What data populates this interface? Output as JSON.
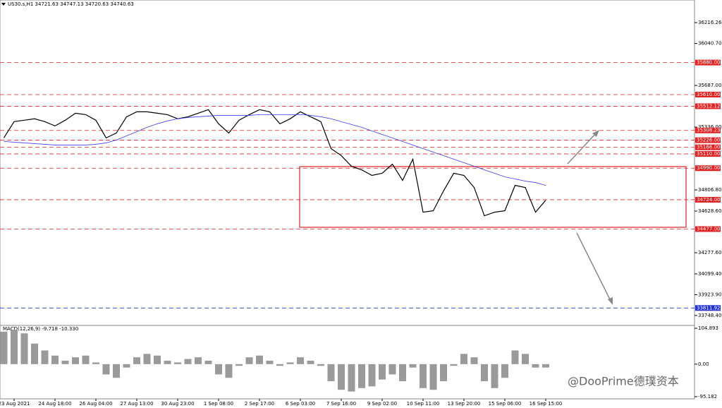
{
  "chart_data": [
    {
      "type": "line",
      "title": "US30.s,H1  34721.63 34747.13 34720.63 34740.63",
      "categories": [
        null,
        "23 Aug 2021",
        null,
        null,
        null,
        "24 Aug 18:00",
        null,
        null,
        null,
        "26 Aug 04:00",
        null,
        null,
        null,
        "27 Aug 13:00",
        null,
        null,
        null,
        "30 Aug 23:00",
        null,
        null,
        null,
        "1 Sep 08:00",
        null,
        null,
        null,
        "2 Sep 17:00",
        null,
        null,
        null,
        "6 Sep 03:00",
        null,
        null,
        null,
        "7 Sep 16:00",
        null,
        null,
        null,
        "9 Sep 02:00",
        null,
        null,
        null,
        "10 Sep 11:00",
        null,
        null,
        null,
        "13 Sep 20:00",
        null,
        null,
        null,
        "15 Sep 06:00",
        null,
        null,
        null,
        "16 Sep 15:00"
      ],
      "series": [
        {
          "color": "#000000",
          "values": [
            35245,
            35382,
            35394,
            35406,
            35382,
            35346,
            35394,
            35453,
            35441,
            35394,
            35245,
            35286,
            35423,
            35465,
            35465,
            35453,
            35441,
            35406,
            35423,
            35453,
            35483,
            35364,
            35286,
            35394,
            35441,
            35483,
            35465,
            35364,
            35406,
            35465,
            35423,
            35382,
            35155,
            35096,
            35006,
            34976,
            34929,
            34947,
            35024,
            34887,
            35066,
            34619,
            34631,
            34798,
            34947,
            34929,
            34827,
            34589,
            34619,
            34631,
            34845,
            34827,
            34619,
            34720
          ]
        },
        {
          "color": "#3b3bff",
          "values": [
            35215,
            35209,
            35203,
            35197,
            35191,
            35185,
            35185,
            35185,
            35185,
            35191,
            35203,
            35227,
            35262,
            35298,
            35334,
            35364,
            35388,
            35406,
            35417,
            35423,
            35429,
            35435,
            35435,
            35435,
            35435,
            35441,
            35441,
            35441,
            35441,
            35441,
            35435,
            35423,
            35406,
            35382,
            35358,
            35334,
            35304,
            35274,
            35245,
            35215,
            35185,
            35155,
            35125,
            35096,
            35066,
            35036,
            35006,
            34976,
            34947,
            34917,
            34899,
            34881,
            34869,
            34845
          ]
        }
      ],
      "ylim": [
        33665,
        36407
      ],
      "yticks": [
        {
          "value": 36216.26,
          "label": "36216.26"
        },
        {
          "value": 36040.7,
          "label": "36040.70"
        },
        {
          "value": 35687,
          "label": "35687.00"
        },
        {
          "value": 35336,
          "label": "35336.00"
        },
        {
          "value": 34806.8,
          "label": "34806.80"
        },
        {
          "value": 34628.6,
          "label": "34628.60"
        },
        {
          "value": 34277.6,
          "label": "34277.60"
        },
        {
          "value": 34099.4,
          "label": "34099.40"
        },
        {
          "value": 33923.9,
          "label": "33923.90"
        },
        {
          "value": 33748.4,
          "label": "33748.40"
        }
      ],
      "levels": [
        {
          "value": 35880,
          "label": "35880.00",
          "color": "#e02020"
        },
        {
          "value": 35610,
          "label": "35610.00",
          "color": "#e02020"
        },
        {
          "value": 35512.12,
          "label": "35512.12",
          "color": "#e02020"
        },
        {
          "value": 35308.23,
          "label": "35308.23",
          "color": "#e02020"
        },
        {
          "value": 35226,
          "label": "35226.00",
          "color": "#e02020"
        },
        {
          "value": 35166,
          "label": "35166.00",
          "color": "#e02020"
        },
        {
          "value": 35110,
          "label": "35110.00",
          "color": "#e02020"
        },
        {
          "value": 34990,
          "label": "34990.00",
          "color": "#e02020"
        },
        {
          "value": 34724,
          "label": "34724.00",
          "color": "#e02020"
        },
        {
          "value": 34477,
          "label": "34477.00",
          "color": "#e02020"
        },
        {
          "value": 33811.92,
          "label": "33811.92",
          "color": "#2030d0"
        }
      ]
    },
    {
      "type": "bar",
      "title": "MACD(12,26,9) -9.718 -10.330",
      "color": "#9a9a9a",
      "values": [
        95,
        100,
        90,
        60,
        40,
        25,
        10,
        20,
        25,
        5,
        -30,
        -40,
        -10,
        20,
        30,
        25,
        10,
        5,
        15,
        20,
        10,
        -30,
        -40,
        -5,
        20,
        25,
        10,
        -5,
        5,
        20,
        10,
        -5,
        -50,
        -75,
        -80,
        -70,
        -65,
        -45,
        -30,
        -50,
        -10,
        -70,
        -75,
        -50,
        -5,
        30,
        20,
        -50,
        -70,
        -40,
        40,
        30,
        -10,
        -10
      ],
      "ylim": [
        -101.4,
        113.2
      ],
      "yticks": [
        {
          "value": 104.893,
          "label": "104.893"
        },
        {
          "value": 0,
          "label": "0.00"
        },
        {
          "value": -95.182,
          "label": "-95.182"
        }
      ]
    }
  ],
  "watermark": "@DooPrime德璞资本"
}
